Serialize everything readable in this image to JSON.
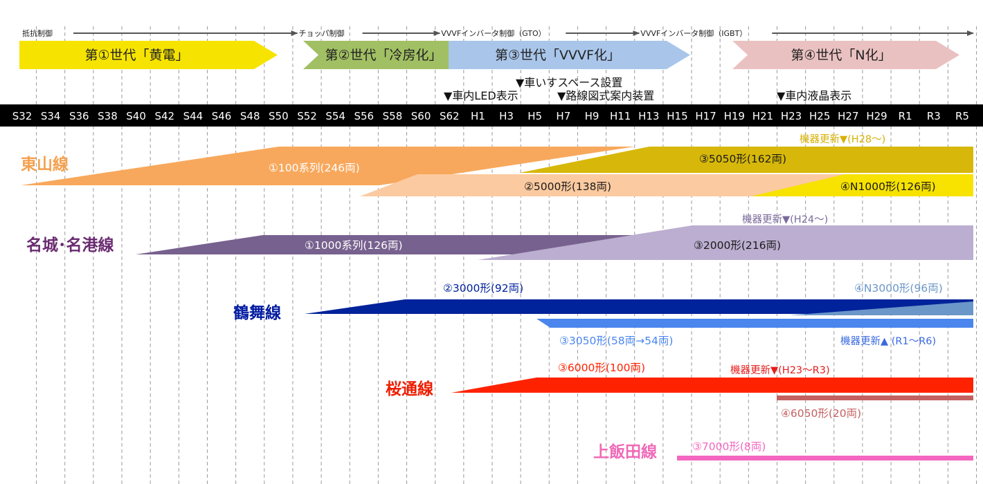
{
  "chart_data": {
    "type": "timeline",
    "ticks": [
      "S32",
      "S34",
      "S36",
      "S38",
      "S40",
      "S42",
      "S44",
      "S46",
      "S48",
      "S50",
      "S52",
      "S54",
      "S56",
      "S58",
      "S60",
      "S62",
      "H1",
      "H3",
      "H5",
      "H7",
      "H9",
      "H11",
      "H13",
      "H15",
      "H17",
      "H19",
      "H21",
      "H23",
      "H25",
      "H27",
      "H29",
      "R1",
      "R3",
      "R5"
    ],
    "control_methods": [
      {
        "label": "抵抗制御",
        "start": "S32",
        "end": "S52"
      },
      {
        "label": "チョッパ制御",
        "start": "S52",
        "end": "S62"
      },
      {
        "label": "VVVFインバータ制御（GTO）",
        "start": "S62",
        "end": "H13"
      },
      {
        "label": "VVVFインバータ制御（IGBT）",
        "start": "H13",
        "end": "R5"
      }
    ],
    "generations": [
      {
        "label": "第①世代「黄電」",
        "start": "S32",
        "end": "S50",
        "color": "#f6e400"
      },
      {
        "label": "第②世代「冷房化」",
        "start": "S52",
        "end": "S62",
        "color": "#a1bf63"
      },
      {
        "label": "第③世代「VVVF化」",
        "start": "S62",
        "end": "H15",
        "color": "#a9c6ea"
      },
      {
        "label": "第④世代「N化」",
        "start": "H19",
        "end": "R5",
        "color": "#eac1c1"
      }
    ],
    "events": [
      {
        "label": "▼車いすスペース設置",
        "year": "H5"
      },
      {
        "label": "▼車内LED表示",
        "year": "S62"
      },
      {
        "label": "▼路線図式案内装置",
        "year": "H7"
      },
      {
        "label": "▼車内液晶表示",
        "year": "H23"
      }
    ],
    "lines": [
      {
        "name": "東山線",
        "color": "#f5a04e",
        "series": [
          {
            "label": "①100系列(246両)",
            "color": "#f8a85c"
          },
          {
            "label": "③5050形(162両)",
            "color": "#d7b80a"
          },
          {
            "label": "②5000形(138両)",
            "color": "#fccaa0"
          },
          {
            "label": "④N1000形(126両)",
            "color": "#f7e200"
          }
        ],
        "notes": [
          {
            "label": "機器更新▼(H28～)",
            "color": "#d7b000"
          }
        ]
      },
      {
        "name": "名城･名港線",
        "color": "#6a2a70",
        "series": [
          {
            "label": "①1000系列(126両)",
            "color": "#77618e"
          },
          {
            "label": "③2000形(216両)",
            "color": "#bbaed0"
          }
        ],
        "notes": [
          {
            "label": "機器更新▼(H24～)",
            "color": "#7a6a9a"
          }
        ]
      },
      {
        "name": "鶴舞線",
        "color": "#001aa0",
        "series": [
          {
            "label": "②3000形(92両)",
            "color": "#00229a"
          },
          {
            "label": "④N3000形(96両)",
            "color": "#6a96c8"
          },
          {
            "label": "③3050形(58両→54両)",
            "color": "#4a86ee"
          }
        ],
        "notes": [
          {
            "label": "機器更新▲ (R1～R6)",
            "color": "#3a6ae0"
          }
        ]
      },
      {
        "name": "桜通線",
        "color": "#ee1d00",
        "series": [
          {
            "label": "③6000形(100両)",
            "color": "#ff2200"
          },
          {
            "label": "④6050形(20両)",
            "color": "#c46060"
          }
        ],
        "notes": [
          {
            "label": "機器更新▼(H23～R3)",
            "color": "#e61c1c"
          }
        ]
      },
      {
        "name": "上飯田線",
        "color": "#f06ab8",
        "series": [
          {
            "label": "③7000形(8両)",
            "color": "#f466c0"
          }
        ],
        "notes": []
      }
    ],
    "colors": {
      "grid": "#9a9a9a",
      "tick_bar": "#000000"
    }
  }
}
